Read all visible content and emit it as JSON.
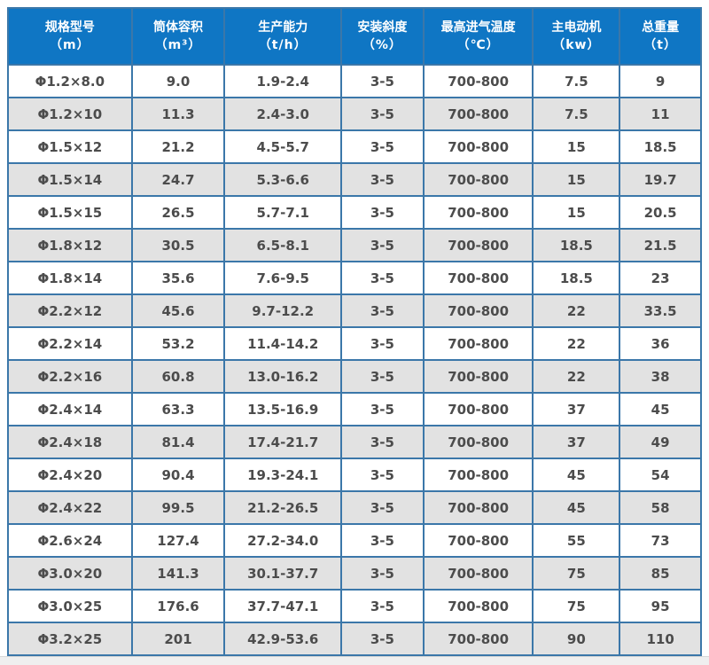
{
  "table": {
    "header_bg_color": "#0f76c4",
    "border_color": "#3b77a9",
    "stripe_color": "#e2e2e2",
    "cell_text_color": "#4c4c4c",
    "header_text_color": "#ffffff",
    "columns": [
      {
        "title": "规格型号",
        "unit": "（m）"
      },
      {
        "title": "筒体容积",
        "unit": "（m³）"
      },
      {
        "title": "生产能力",
        "unit": "（t/h）"
      },
      {
        "title": "安装斜度",
        "unit": "（%）"
      },
      {
        "title": "最高进气温度",
        "unit": "（℃）"
      },
      {
        "title": "主电动机",
        "unit": "（kw）"
      },
      {
        "title": "总重量",
        "unit": "（t）"
      }
    ],
    "rows": [
      [
        "Φ1.2×8.0",
        "9.0",
        "1.9-2.4",
        "3-5",
        "700-800",
        "7.5",
        "9"
      ],
      [
        "Φ1.2×10",
        "11.3",
        "2.4-3.0",
        "3-5",
        "700-800",
        "7.5",
        "11"
      ],
      [
        "Φ1.5×12",
        "21.2",
        "4.5-5.7",
        "3-5",
        "700-800",
        "15",
        "18.5"
      ],
      [
        "Φ1.5×14",
        "24.7",
        "5.3-6.6",
        "3-5",
        "700-800",
        "15",
        "19.7"
      ],
      [
        "Φ1.5×15",
        "26.5",
        "5.7-7.1",
        "3-5",
        "700-800",
        "15",
        "20.5"
      ],
      [
        "Φ1.8×12",
        "30.5",
        "6.5-8.1",
        "3-5",
        "700-800",
        "18.5",
        "21.5"
      ],
      [
        "Φ1.8×14",
        "35.6",
        "7.6-9.5",
        "3-5",
        "700-800",
        "18.5",
        "23"
      ],
      [
        "Φ2.2×12",
        "45.6",
        "9.7-12.2",
        "3-5",
        "700-800",
        "22",
        "33.5"
      ],
      [
        "Φ2.2×14",
        "53.2",
        "11.4-14.2",
        "3-5",
        "700-800",
        "22",
        "36"
      ],
      [
        "Φ2.2×16",
        "60.8",
        "13.0-16.2",
        "3-5",
        "700-800",
        "22",
        "38"
      ],
      [
        "Φ2.4×14",
        "63.3",
        "13.5-16.9",
        "3-5",
        "700-800",
        "37",
        "45"
      ],
      [
        "Φ2.4×18",
        "81.4",
        "17.4-21.7",
        "3-5",
        "700-800",
        "37",
        "49"
      ],
      [
        "Φ2.4×20",
        "90.4",
        "19.3-24.1",
        "3-5",
        "700-800",
        "45",
        "54"
      ],
      [
        "Φ2.4×22",
        "99.5",
        "21.2-26.5",
        "3-5",
        "700-800",
        "45",
        "58"
      ],
      [
        "Φ2.6×24",
        "127.4",
        "27.2-34.0",
        "3-5",
        "700-800",
        "55",
        "73"
      ],
      [
        "Φ3.0×20",
        "141.3",
        "30.1-37.7",
        "3-5",
        "700-800",
        "75",
        "85"
      ],
      [
        "Φ3.0×25",
        "176.6",
        "37.7-47.1",
        "3-5",
        "700-800",
        "75",
        "95"
      ],
      [
        "Φ3.2×25",
        "201",
        "42.9-53.6",
        "3-5",
        "700-800",
        "90",
        "110"
      ]
    ]
  },
  "chart_data": {
    "type": "table",
    "title": "",
    "columns": [
      "规格型号（m）",
      "筒体容积（m³）",
      "生产能力（t/h）",
      "安装斜度（%）",
      "最高进气温度（℃）",
      "主电动机（kw）",
      "总重量（t）"
    ],
    "rows": [
      [
        "Φ1.2×8.0",
        "9.0",
        "1.9-2.4",
        "3-5",
        "700-800",
        "7.5",
        "9"
      ],
      [
        "Φ1.2×10",
        "11.3",
        "2.4-3.0",
        "3-5",
        "700-800",
        "7.5",
        "11"
      ],
      [
        "Φ1.5×12",
        "21.2",
        "4.5-5.7",
        "3-5",
        "700-800",
        "15",
        "18.5"
      ],
      [
        "Φ1.5×14",
        "24.7",
        "5.3-6.6",
        "3-5",
        "700-800",
        "15",
        "19.7"
      ],
      [
        "Φ1.5×15",
        "26.5",
        "5.7-7.1",
        "3-5",
        "700-800",
        "15",
        "20.5"
      ],
      [
        "Φ1.8×12",
        "30.5",
        "6.5-8.1",
        "3-5",
        "700-800",
        "18.5",
        "21.5"
      ],
      [
        "Φ1.8×14",
        "35.6",
        "7.6-9.5",
        "3-5",
        "700-800",
        "18.5",
        "23"
      ],
      [
        "Φ2.2×12",
        "45.6",
        "9.7-12.2",
        "3-5",
        "700-800",
        "22",
        "33.5"
      ],
      [
        "Φ2.2×14",
        "53.2",
        "11.4-14.2",
        "3-5",
        "700-800",
        "22",
        "36"
      ],
      [
        "Φ2.2×16",
        "60.8",
        "13.0-16.2",
        "3-5",
        "700-800",
        "22",
        "38"
      ],
      [
        "Φ2.4×14",
        "63.3",
        "13.5-16.9",
        "3-5",
        "700-800",
        "37",
        "45"
      ],
      [
        "Φ2.4×18",
        "81.4",
        "17.4-21.7",
        "3-5",
        "700-800",
        "37",
        "49"
      ],
      [
        "Φ2.4×20",
        "90.4",
        "19.3-24.1",
        "3-5",
        "700-800",
        "45",
        "54"
      ],
      [
        "Φ2.4×22",
        "99.5",
        "21.2-26.5",
        "3-5",
        "700-800",
        "45",
        "58"
      ],
      [
        "Φ2.6×24",
        "127.4",
        "27.2-34.0",
        "3-5",
        "700-800",
        "55",
        "73"
      ],
      [
        "Φ3.0×20",
        "141.3",
        "30.1-37.7",
        "3-5",
        "700-800",
        "75",
        "85"
      ],
      [
        "Φ3.0×25",
        "176.6",
        "37.7-47.1",
        "3-5",
        "700-800",
        "75",
        "95"
      ],
      [
        "Φ3.2×25",
        "201",
        "42.9-53.6",
        "3-5",
        "700-800",
        "90",
        "110"
      ]
    ]
  }
}
